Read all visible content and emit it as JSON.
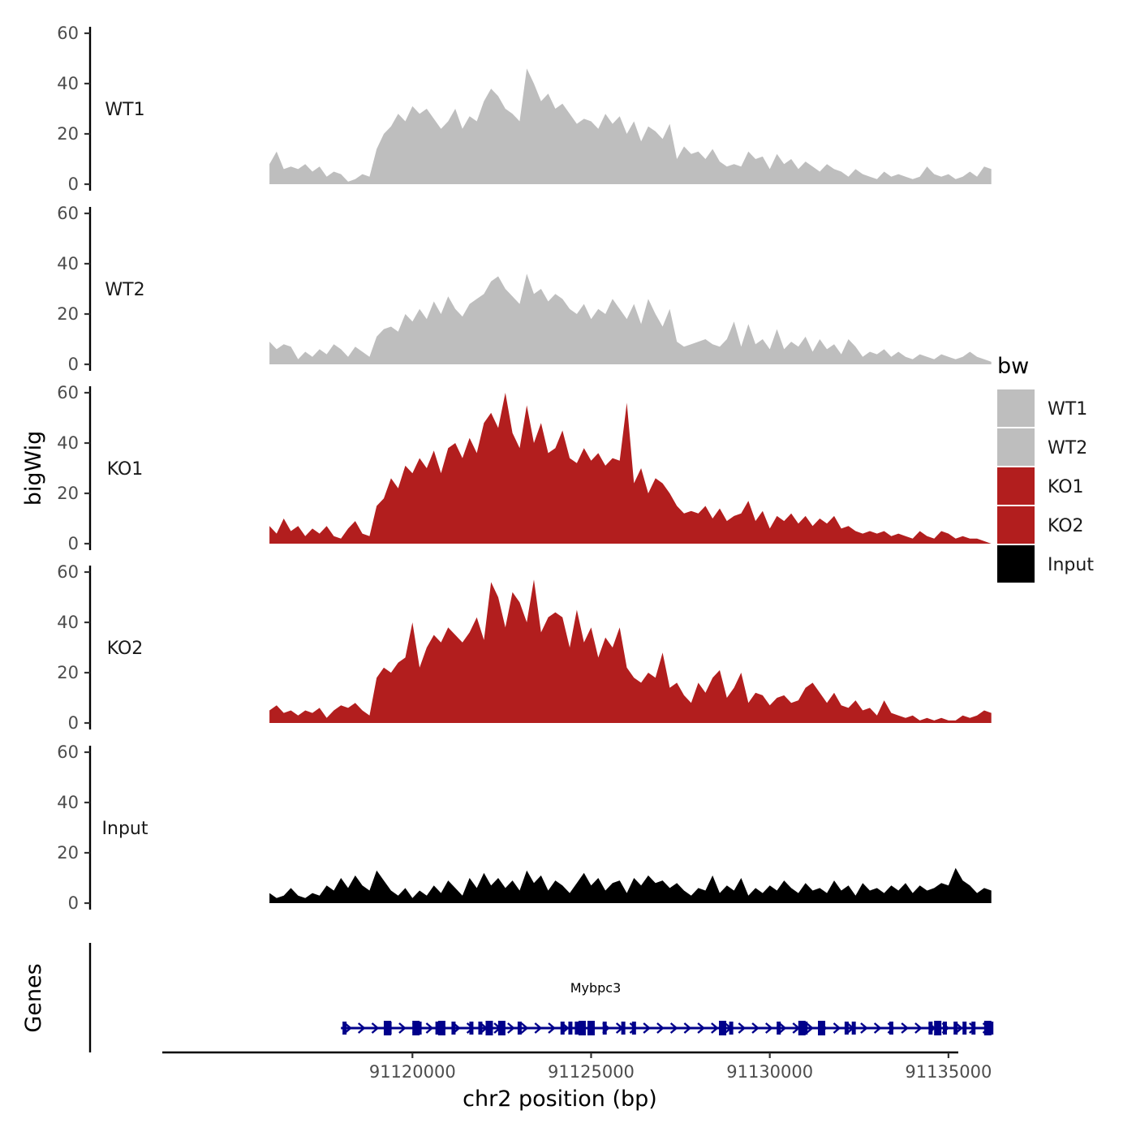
{
  "chart_data": {
    "type": "area",
    "title": "",
    "xlabel": "chr2 position (bp)",
    "ylabel": "bigWig",
    "xlim": [
      91113000,
      91137000
    ],
    "ylim": [
      0,
      60
    ],
    "y_ticks": [
      "0",
      "20",
      "40",
      "60"
    ],
    "x_ticks": [
      {
        "value": 91120000,
        "label": "91120000"
      },
      {
        "value": 91125000,
        "label": "91125000"
      },
      {
        "value": 91130000,
        "label": "91130000"
      },
      {
        "value": 91135000,
        "label": "91135000"
      }
    ],
    "legend": {
      "title": "bw",
      "position": "right",
      "entries": [
        {
          "label": "WT1",
          "color": "#bebebe"
        },
        {
          "label": "WT2",
          "color": "#bebebe"
        },
        {
          "label": "KO1",
          "color": "#b21e1e"
        },
        {
          "label": "KO2",
          "color": "#b21e1e"
        },
        {
          "label": "Input",
          "color": "#000000"
        }
      ]
    },
    "series": [
      {
        "name": "WT1",
        "color": "#bebebe",
        "x": [
          91116000,
          91116200,
          91116400,
          91116600,
          91116800,
          91117000,
          91117200,
          91117400,
          91117600,
          91117800,
          91118000,
          91118200,
          91118400,
          91118600,
          91118800,
          91119000,
          91119200,
          91119400,
          91119600,
          91119800,
          91120000,
          91120200,
          91120400,
          91120600,
          91120800,
          91121000,
          91121200,
          91121400,
          91121600,
          91121800,
          91122000,
          91122200,
          91122400,
          91122600,
          91122800,
          91123000,
          91123200,
          91123400,
          91123600,
          91123800,
          91124000,
          91124200,
          91124400,
          91124600,
          91124800,
          91125000,
          91125200,
          91125400,
          91125600,
          91125800,
          91126000,
          91126200,
          91126400,
          91126600,
          91126800,
          91127000,
          91127200,
          91127400,
          91127600,
          91127800,
          91128000,
          91128200,
          91128400,
          91128600,
          91128800,
          91129000,
          91129200,
          91129400,
          91129600,
          91129800,
          91130000,
          91130200,
          91130400,
          91130600,
          91130800,
          91131000,
          91131200,
          91131400,
          91131600,
          91131800,
          91132000,
          91132200,
          91132400,
          91132600,
          91132800,
          91133000,
          91133200,
          91133400,
          91133600,
          91133800,
          91134000,
          91134200,
          91134400,
          91134600,
          91134800,
          91135000,
          91135200,
          91135400,
          91135600,
          91135800,
          91136000,
          91136200
        ],
        "values": [
          8,
          13,
          6,
          7,
          6,
          8,
          5,
          7,
          3,
          5,
          4,
          1,
          2,
          4,
          3,
          14,
          20,
          23,
          28,
          25,
          31,
          28,
          30,
          26,
          22,
          25,
          30,
          22,
          27,
          25,
          33,
          38,
          35,
          30,
          28,
          25,
          46,
          40,
          33,
          36,
          30,
          32,
          28,
          24,
          26,
          25,
          22,
          28,
          24,
          27,
          20,
          25,
          17,
          23,
          21,
          18,
          24,
          10,
          15,
          12,
          13,
          10,
          14,
          9,
          7,
          8,
          7,
          13,
          10,
          11,
          6,
          12,
          8,
          10,
          6,
          9,
          7,
          5,
          8,
          6,
          5,
          3,
          6,
          4,
          3,
          2,
          5,
          3,
          4,
          3,
          2,
          3,
          7,
          4,
          3,
          4,
          2,
          3,
          5,
          3,
          7,
          6
        ]
      },
      {
        "name": "WT2",
        "color": "#bebebe",
        "x": [
          91116000,
          91116200,
          91116400,
          91116600,
          91116800,
          91117000,
          91117200,
          91117400,
          91117600,
          91117800,
          91118000,
          91118200,
          91118400,
          91118600,
          91118800,
          91119000,
          91119200,
          91119400,
          91119600,
          91119800,
          91120000,
          91120200,
          91120400,
          91120600,
          91120800,
          91121000,
          91121200,
          91121400,
          91121600,
          91121800,
          91122000,
          91122200,
          91122400,
          91122600,
          91122800,
          91123000,
          91123200,
          91123400,
          91123600,
          91123800,
          91124000,
          91124200,
          91124400,
          91124600,
          91124800,
          91125000,
          91125200,
          91125400,
          91125600,
          91125800,
          91126000,
          91126200,
          91126400,
          91126600,
          91126800,
          91127000,
          91127200,
          91127400,
          91127600,
          91127800,
          91128000,
          91128200,
          91128400,
          91128600,
          91128800,
          91129000,
          91129200,
          91129400,
          91129600,
          91129800,
          91130000,
          91130200,
          91130400,
          91130600,
          91130800,
          91131000,
          91131200,
          91131400,
          91131600,
          91131800,
          91132000,
          91132200,
          91132400,
          91132600,
          91132800,
          91133000,
          91133200,
          91133400,
          91133600,
          91133800,
          91134000,
          91134200,
          91134400,
          91134600,
          91134800,
          91135000,
          91135200,
          91135400,
          91135600,
          91135800,
          91136000,
          91136200
        ],
        "values": [
          9,
          6,
          8,
          7,
          2,
          5,
          3,
          6,
          4,
          8,
          6,
          3,
          7,
          5,
          3,
          11,
          14,
          15,
          13,
          20,
          17,
          22,
          18,
          25,
          20,
          27,
          22,
          19,
          24,
          26,
          28,
          33,
          35,
          30,
          27,
          24,
          36,
          28,
          30,
          25,
          28,
          26,
          22,
          20,
          24,
          18,
          22,
          20,
          26,
          22,
          18,
          24,
          16,
          26,
          20,
          15,
          22,
          9,
          7,
          8,
          9,
          10,
          8,
          7,
          10,
          17,
          7,
          16,
          8,
          10,
          6,
          14,
          6,
          9,
          7,
          11,
          5,
          10,
          6,
          8,
          4,
          10,
          7,
          3,
          5,
          4,
          6,
          3,
          5,
          3,
          2,
          4,
          3,
          2,
          4,
          3,
          2,
          3,
          5,
          3,
          2,
          1
        ]
      },
      {
        "name": "KO1",
        "color": "#b21e1e",
        "x": [
          91116000,
          91116200,
          91116400,
          91116600,
          91116800,
          91117000,
          91117200,
          91117400,
          91117600,
          91117800,
          91118000,
          91118200,
          91118400,
          91118600,
          91118800,
          91119000,
          91119200,
          91119400,
          91119600,
          91119800,
          91120000,
          91120200,
          91120400,
          91120600,
          91120800,
          91121000,
          91121200,
          91121400,
          91121600,
          91121800,
          91122000,
          91122200,
          91122400,
          91122600,
          91122800,
          91123000,
          91123200,
          91123400,
          91123600,
          91123800,
          91124000,
          91124200,
          91124400,
          91124600,
          91124800,
          91125000,
          91125200,
          91125400,
          91125600,
          91125800,
          91126000,
          91126200,
          91126400,
          91126600,
          91126800,
          91127000,
          91127200,
          91127400,
          91127600,
          91127800,
          91128000,
          91128200,
          91128400,
          91128600,
          91128800,
          91129000,
          91129200,
          91129400,
          91129600,
          91129800,
          91130000,
          91130200,
          91130400,
          91130600,
          91130800,
          91131000,
          91131200,
          91131400,
          91131600,
          91131800,
          91132000,
          91132200,
          91132400,
          91132600,
          91132800,
          91133000,
          91133200,
          91133400,
          91133600,
          91133800,
          91134000,
          91134200,
          91134400,
          91134600,
          91134800,
          91135000,
          91135200,
          91135400,
          91135600,
          91135800,
          91136000,
          91136200
        ],
        "values": [
          7,
          4,
          10,
          5,
          7,
          3,
          6,
          4,
          7,
          3,
          2,
          6,
          9,
          4,
          3,
          15,
          18,
          26,
          22,
          31,
          28,
          34,
          30,
          37,
          28,
          38,
          40,
          34,
          42,
          36,
          48,
          52,
          46,
          60,
          44,
          38,
          55,
          40,
          48,
          36,
          38,
          45,
          34,
          32,
          38,
          33,
          36,
          31,
          34,
          33,
          56,
          24,
          30,
          20,
          26,
          24,
          20,
          15,
          12,
          13,
          12,
          15,
          10,
          14,
          9,
          11,
          12,
          17,
          9,
          13,
          6,
          11,
          9,
          12,
          8,
          11,
          7,
          10,
          8,
          11,
          6,
          7,
          5,
          4,
          5,
          4,
          5,
          3,
          4,
          3,
          2,
          5,
          3,
          2,
          5,
          4,
          2,
          3,
          2,
          2,
          1,
          0
        ]
      },
      {
        "name": "KO2",
        "color": "#b21e1e",
        "x": [
          91116000,
          91116200,
          91116400,
          91116600,
          91116800,
          91117000,
          91117200,
          91117400,
          91117600,
          91117800,
          91118000,
          91118200,
          91118400,
          91118600,
          91118800,
          91119000,
          91119200,
          91119400,
          91119600,
          91119800,
          91120000,
          91120200,
          91120400,
          91120600,
          91120800,
          91121000,
          91121200,
          91121400,
          91121600,
          91121800,
          91122000,
          91122200,
          91122400,
          91122600,
          91122800,
          91123000,
          91123200,
          91123400,
          91123600,
          91123800,
          91124000,
          91124200,
          91124400,
          91124600,
          91124800,
          91125000,
          91125200,
          91125400,
          91125600,
          91125800,
          91126000,
          91126200,
          91126400,
          91126600,
          91126800,
          91127000,
          91127200,
          91127400,
          91127600,
          91127800,
          91128000,
          91128200,
          91128400,
          91128600,
          91128800,
          91129000,
          91129200,
          91129400,
          91129600,
          91129800,
          91130000,
          91130200,
          91130400,
          91130600,
          91130800,
          91131000,
          91131200,
          91131400,
          91131600,
          91131800,
          91132000,
          91132200,
          91132400,
          91132600,
          91132800,
          91133000,
          91133200,
          91133400,
          91133600,
          91133800,
          91134000,
          91134200,
          91134400,
          91134600,
          91134800,
          91135000,
          91135200,
          91135400,
          91135600,
          91135800,
          91136000,
          91136200
        ],
        "values": [
          5,
          7,
          4,
          5,
          3,
          5,
          4,
          6,
          2,
          5,
          7,
          6,
          8,
          5,
          3,
          18,
          22,
          20,
          24,
          26,
          40,
          22,
          30,
          35,
          32,
          38,
          35,
          32,
          36,
          42,
          33,
          56,
          50,
          38,
          52,
          48,
          40,
          57,
          36,
          42,
          44,
          42,
          30,
          45,
          32,
          38,
          26,
          34,
          30,
          38,
          22,
          18,
          16,
          20,
          18,
          28,
          14,
          16,
          11,
          8,
          16,
          12,
          18,
          21,
          10,
          14,
          20,
          8,
          12,
          11,
          7,
          10,
          11,
          8,
          9,
          14,
          16,
          12,
          8,
          12,
          7,
          6,
          9,
          5,
          6,
          3,
          9,
          4,
          3,
          2,
          3,
          1,
          2,
          1,
          2,
          1,
          1,
          3,
          2,
          3,
          5,
          4
        ]
      },
      {
        "name": "Input",
        "color": "#000000",
        "x": [
          91116000,
          91116200,
          91116400,
          91116600,
          91116800,
          91117000,
          91117200,
          91117400,
          91117600,
          91117800,
          91118000,
          91118200,
          91118400,
          91118600,
          91118800,
          91119000,
          91119200,
          91119400,
          91119600,
          91119800,
          91120000,
          91120200,
          91120400,
          91120600,
          91120800,
          91121000,
          91121200,
          91121400,
          91121600,
          91121800,
          91122000,
          91122200,
          91122400,
          91122600,
          91122800,
          91123000,
          91123200,
          91123400,
          91123600,
          91123800,
          91124000,
          91124200,
          91124400,
          91124600,
          91124800,
          91125000,
          91125200,
          91125400,
          91125600,
          91125800,
          91126000,
          91126200,
          91126400,
          91126600,
          91126800,
          91127000,
          91127200,
          91127400,
          91127600,
          91127800,
          91128000,
          91128200,
          91128400,
          91128600,
          91128800,
          91129000,
          91129200,
          91129400,
          91129600,
          91129800,
          91130000,
          91130200,
          91130400,
          91130600,
          91130800,
          91131000,
          91131200,
          91131400,
          91131600,
          91131800,
          91132000,
          91132200,
          91132400,
          91132600,
          91132800,
          91133000,
          91133200,
          91133400,
          91133600,
          91133800,
          91134000,
          91134200,
          91134400,
          91134600,
          91134800,
          91135000,
          91135200,
          91135400,
          91135600,
          91135800,
          91136000,
          91136200
        ],
        "values": [
          4,
          2,
          3,
          6,
          3,
          2,
          4,
          3,
          7,
          5,
          10,
          6,
          11,
          7,
          5,
          13,
          9,
          5,
          3,
          6,
          2,
          5,
          3,
          7,
          4,
          9,
          6,
          3,
          10,
          6,
          12,
          7,
          10,
          6,
          9,
          5,
          13,
          8,
          11,
          5,
          9,
          7,
          4,
          8,
          12,
          7,
          10,
          5,
          8,
          9,
          4,
          10,
          7,
          11,
          8,
          9,
          6,
          8,
          5,
          3,
          6,
          5,
          11,
          4,
          7,
          5,
          10,
          3,
          6,
          4,
          7,
          5,
          9,
          6,
          4,
          8,
          5,
          6,
          4,
          9,
          5,
          7,
          3,
          8,
          5,
          6,
          4,
          7,
          5,
          8,
          4,
          7,
          5,
          6,
          8,
          7,
          14,
          9,
          7,
          4,
          6,
          5
        ]
      }
    ],
    "gene_track": {
      "label": "Genes",
      "gene": "Mybpc3",
      "color": "#00008b",
      "start": 91118000,
      "end": 91136200,
      "exons": [
        91118100,
        91119300,
        91119360,
        91120100,
        91120200,
        91120700,
        91120820,
        91121150,
        91121650,
        91121900,
        91122150,
        91122500,
        91123000,
        91124200,
        91124420,
        91124600,
        91124750,
        91125000,
        91125380,
        91125900,
        91126200,
        91128680,
        91128920,
        91130250,
        91130900,
        91131000,
        91131450,
        91132150,
        91132350,
        91133400,
        91134500,
        91134700,
        91134900,
        91135200,
        91135450,
        91135700,
        91136100,
        91136200
      ]
    }
  }
}
